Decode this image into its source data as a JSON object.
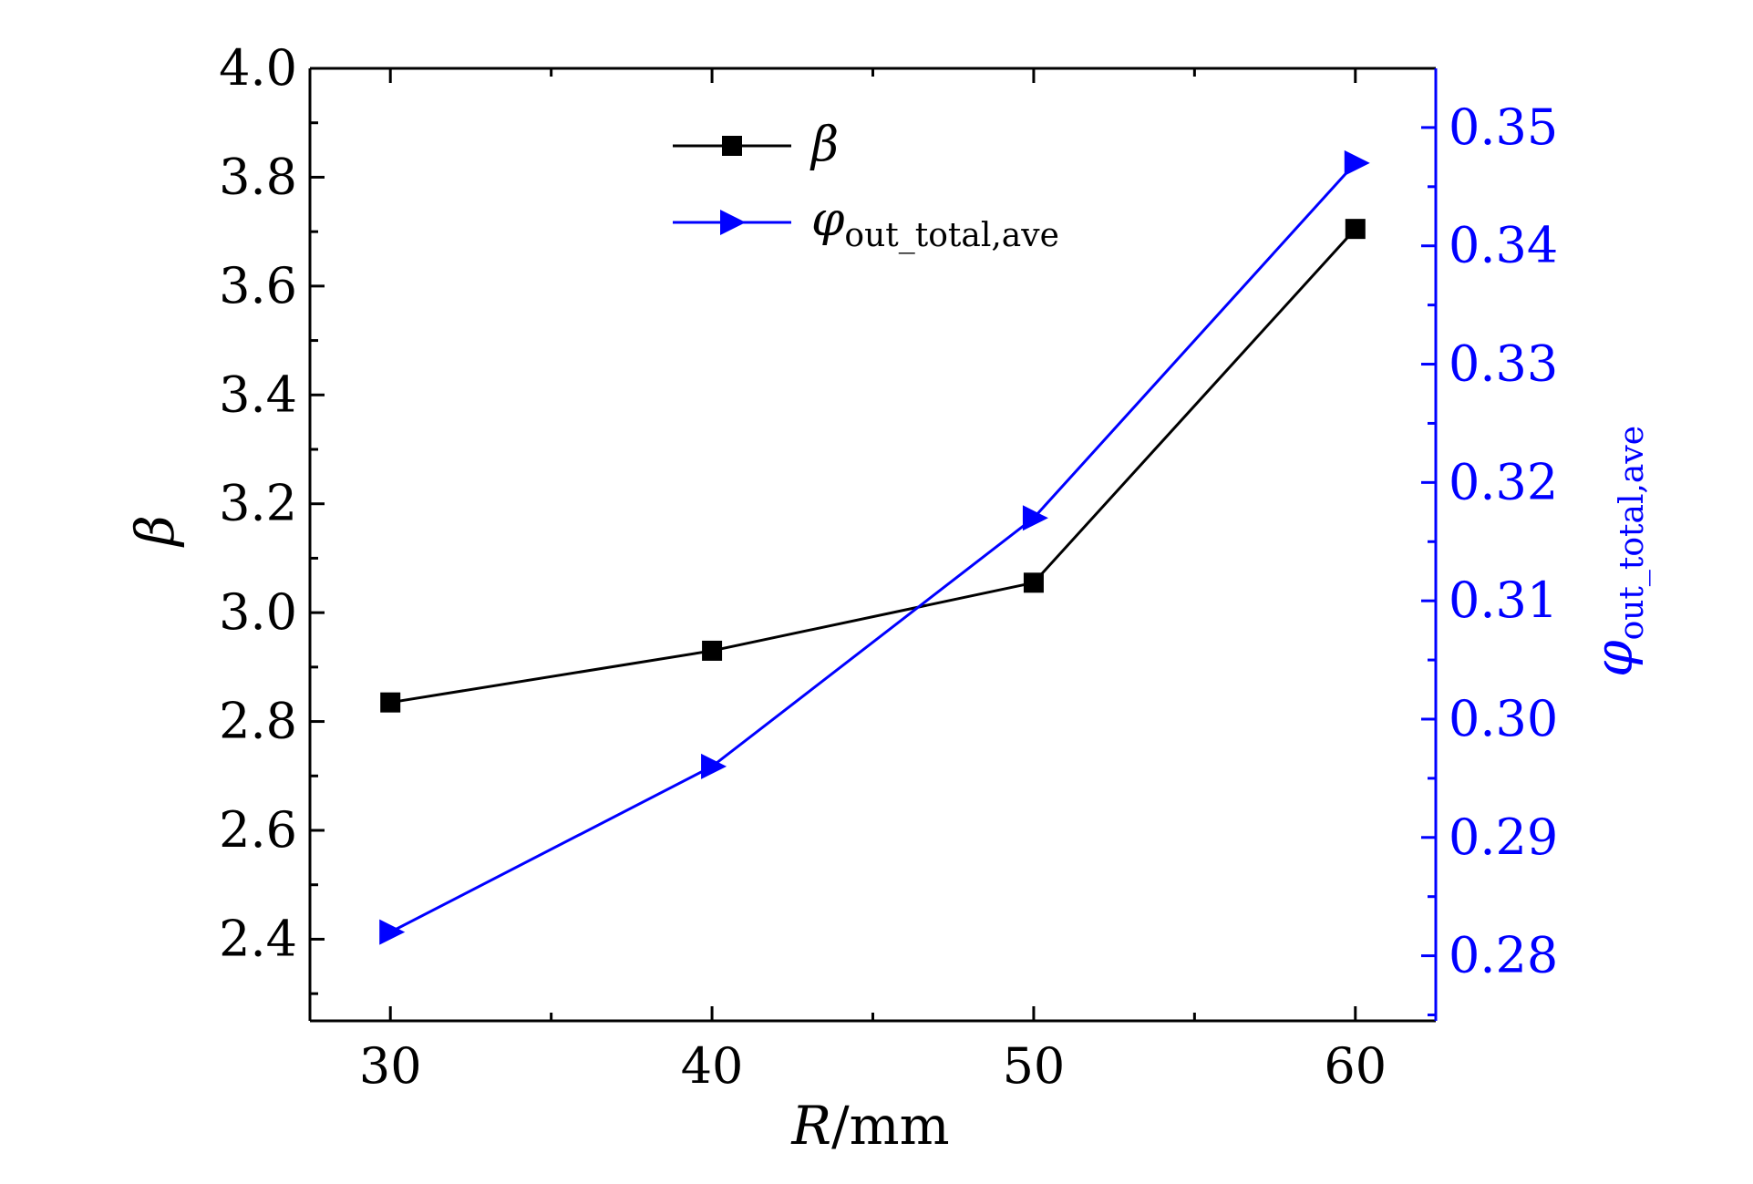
{
  "chart_data": {
    "type": "line",
    "x": [
      30,
      40,
      50,
      60
    ],
    "xlabel": {
      "var": "R",
      "unit": "/mm"
    },
    "xlim": [
      27.5,
      62.5
    ],
    "xticks": [
      30,
      40,
      50,
      60
    ],
    "xtick_labels": [
      "30",
      "40",
      "50",
      "60"
    ],
    "ylabel_left": "β",
    "ylim_left": [
      2.25,
      4.0
    ],
    "yticks_left": [
      2.4,
      2.6,
      2.8,
      3.0,
      3.2,
      3.4,
      3.6,
      3.8,
      4.0
    ],
    "ytick_labels_left": [
      "2.4",
      "2.6",
      "2.8",
      "3.0",
      "3.2",
      "3.4",
      "3.6",
      "3.8",
      "4.0"
    ],
    "ylabel_right": {
      "main": "φ",
      "sub": "out_total,ave"
    },
    "ylim_right": [
      0.2745,
      0.355
    ],
    "yticks_right": [
      0.28,
      0.29,
      0.3,
      0.31,
      0.32,
      0.33,
      0.34,
      0.35
    ],
    "ytick_labels_right": [
      "0.28",
      "0.29",
      "0.30",
      "0.31",
      "0.32",
      "0.33",
      "0.34",
      "0.35"
    ],
    "grid": false,
    "legend_placement": "top-center",
    "series": [
      {
        "name": "β",
        "axis": "left",
        "marker": "square",
        "color": "#000000",
        "values": [
          2.835,
          2.93,
          3.055,
          3.705
        ]
      },
      {
        "name_main": "φ",
        "name_sub": "out_total,ave",
        "axis": "right",
        "marker": "triangle-right",
        "color": "#0000ff",
        "values": [
          0.282,
          0.296,
          0.317,
          0.347
        ]
      }
    ]
  }
}
